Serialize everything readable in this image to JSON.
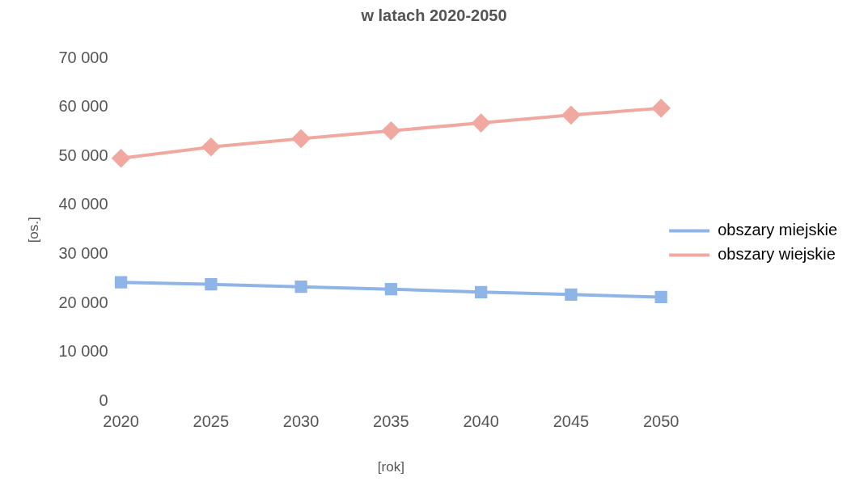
{
  "chart_data": {
    "type": "line",
    "title": "w latach 2020-2050",
    "xlabel": "[rok]",
    "ylabel": "[os.]",
    "categories": [
      "2020",
      "2025",
      "2030",
      "2035",
      "2040",
      "2045",
      "2050"
    ],
    "series": [
      {
        "name": "obszary miejskie",
        "color": "#8fb4e8",
        "marker": "square",
        "values": [
          24300,
          23900,
          23400,
          22900,
          22300,
          21800,
          21300
        ]
      },
      {
        "name": "obszary wiejskie",
        "color": "#f0a8a0",
        "marker": "diamond",
        "values": [
          49600,
          51900,
          53600,
          55200,
          56800,
          58400,
          59800
        ]
      }
    ],
    "ylim": [
      0,
      70000
    ],
    "yticks": [
      {
        "value": 0,
        "label": "0"
      },
      {
        "value": 10000,
        "label": "10 000"
      },
      {
        "value": 20000,
        "label": "20 000"
      },
      {
        "value": 30000,
        "label": "30 000"
      },
      {
        "value": 40000,
        "label": "40 000"
      },
      {
        "value": 50000,
        "label": "50 000"
      },
      {
        "value": 60000,
        "label": "60 000"
      },
      {
        "value": 70000,
        "label": "70 000"
      }
    ],
    "grid": false,
    "legend": "right"
  }
}
